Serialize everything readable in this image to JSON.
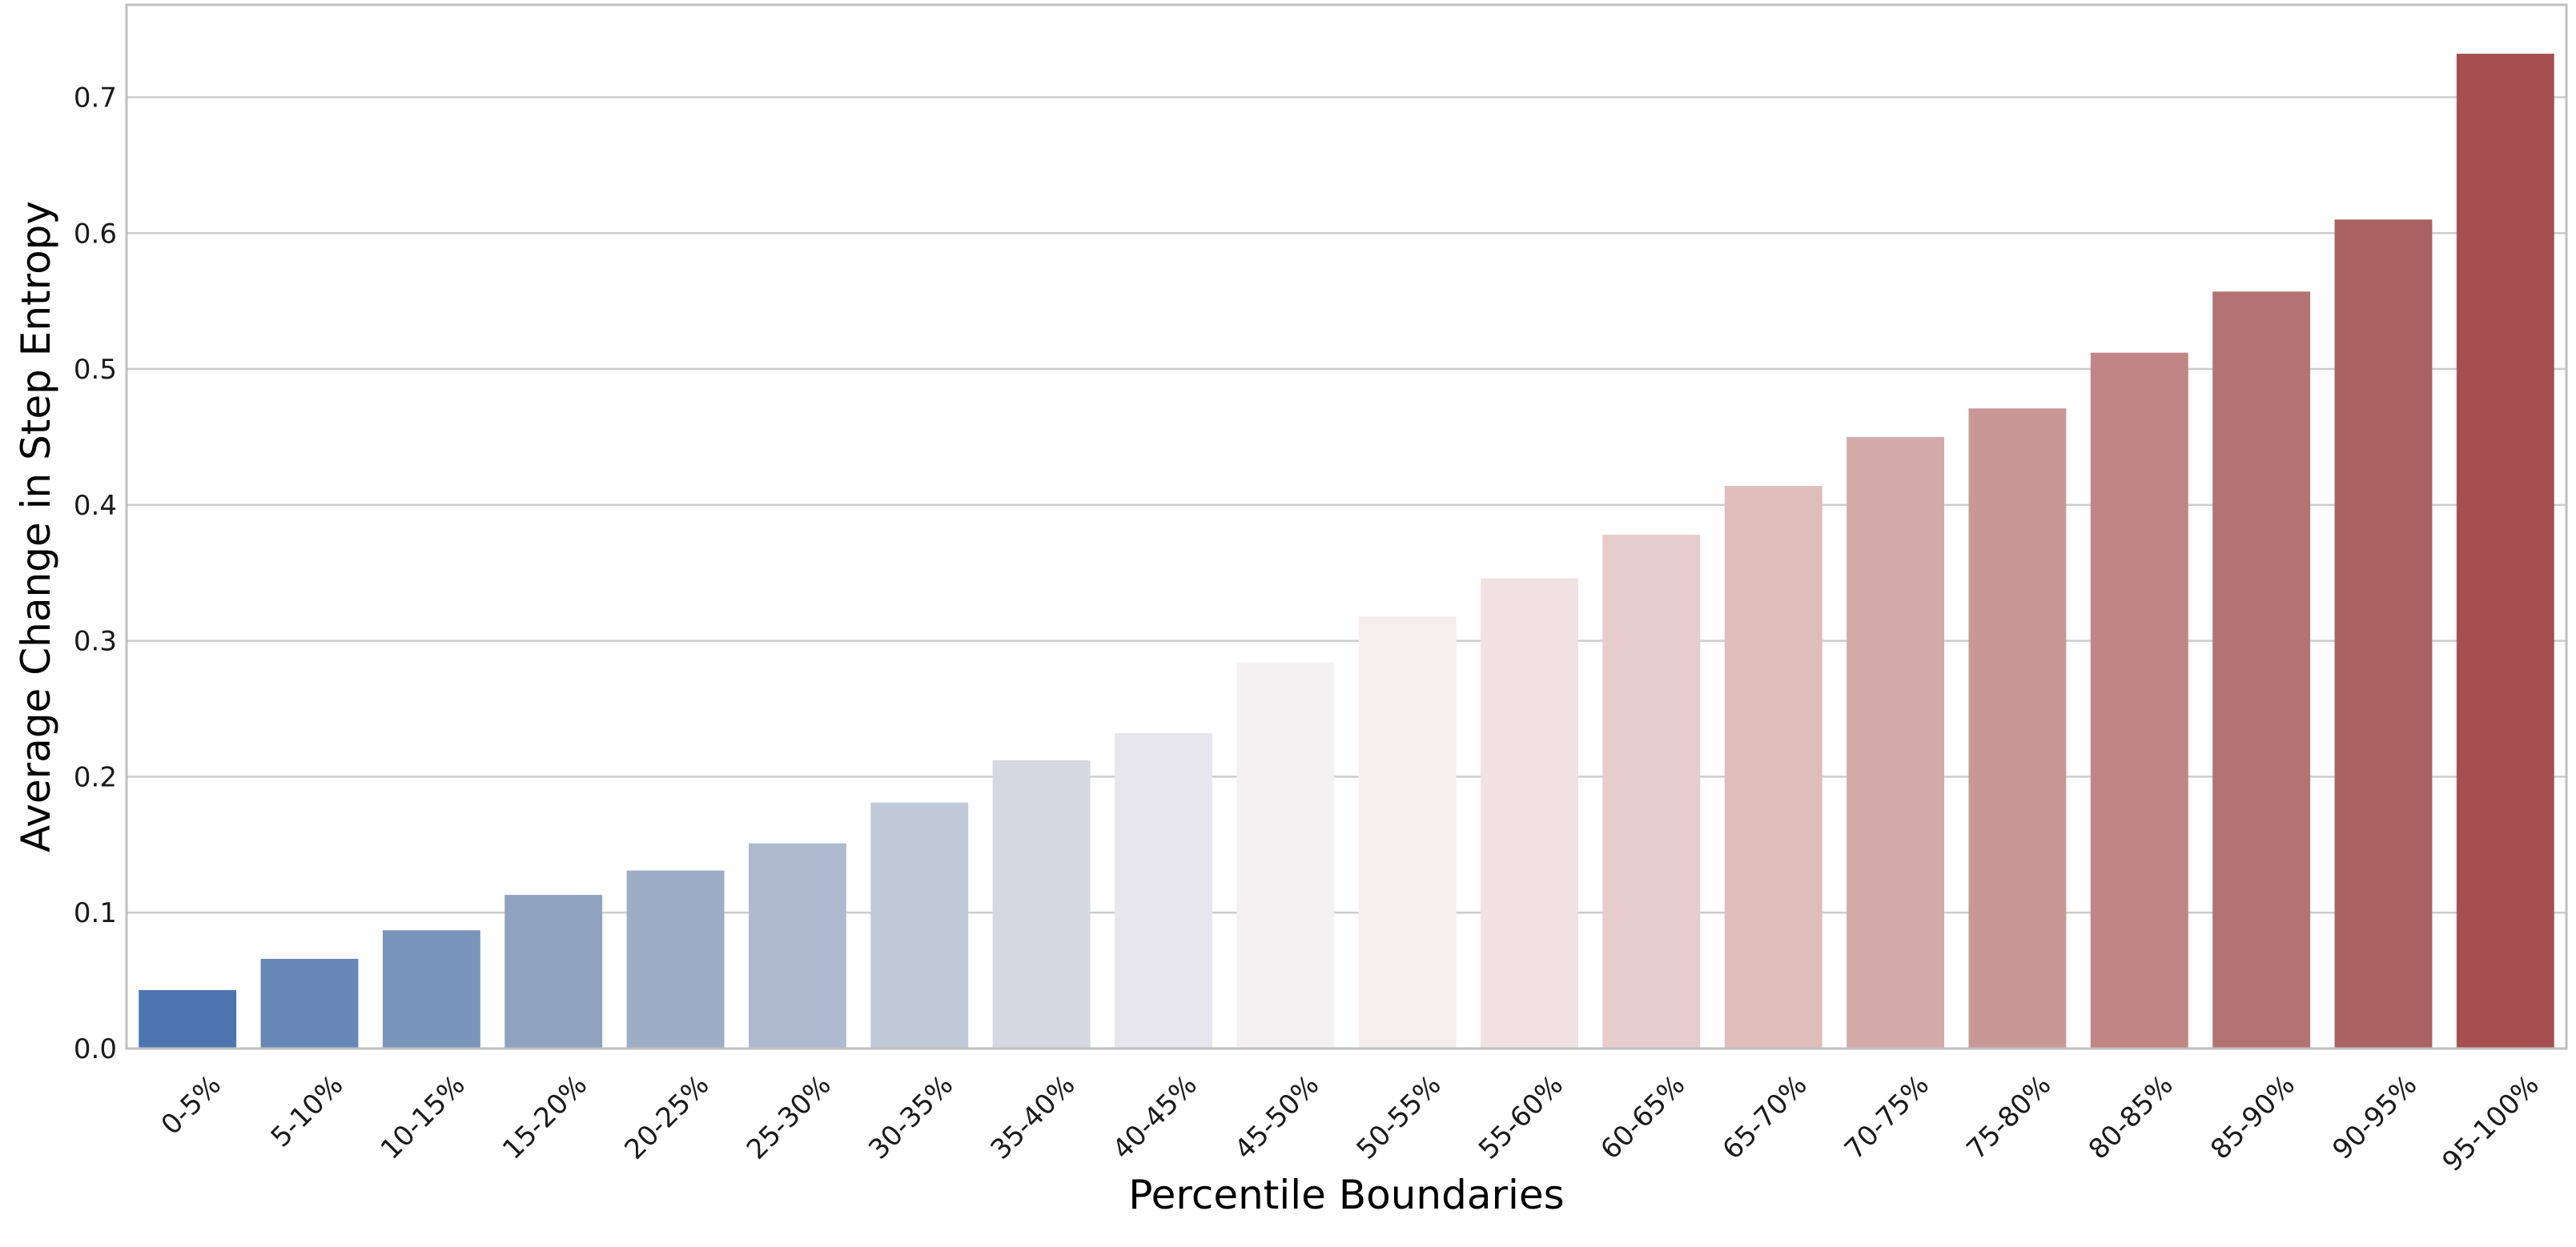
{
  "chart_data": {
    "type": "bar",
    "categories": [
      "0-5%",
      "5-10%",
      "10-15%",
      "15-20%",
      "20-25%",
      "25-30%",
      "30-35%",
      "35-40%",
      "40-45%",
      "45-50%",
      "50-55%",
      "55-60%",
      "60-65%",
      "65-70%",
      "70-75%",
      "75-80%",
      "80-85%",
      "85-90%",
      "90-95%",
      "95-100%"
    ],
    "values": [
      0.043,
      0.066,
      0.087,
      0.113,
      0.131,
      0.151,
      0.181,
      0.212,
      0.232,
      0.284,
      0.318,
      0.346,
      0.378,
      0.414,
      0.45,
      0.471,
      0.512,
      0.557,
      0.61,
      0.732
    ],
    "colors": [
      "#4d76b0",
      "#6787b6",
      "#7a95bb",
      "#8ea2c0",
      "#9dadc5",
      "#aebad0",
      "#c0c9d8",
      "#d3d8e2",
      "#e6e6ec",
      "#f4f1f2",
      "#f6eded",
      "#f1e2e2",
      "#e6cccc",
      "#dfbdbb",
      "#d4aaa9",
      "#c99896",
      "#c08584",
      "#b37372",
      "#ab6262",
      "#a54f51"
    ],
    "title": "",
    "xlabel": "Percentile Boundaries",
    "ylabel": "Average Change in Step Entropy",
    "ylim": [
      0,
      0.768
    ],
    "yticks": [
      0.0,
      0.1,
      0.2,
      0.3,
      0.4,
      0.5,
      0.6,
      0.7
    ],
    "ytick_labels": [
      "0.0",
      "0.1",
      "0.2",
      "0.3",
      "0.4",
      "0.5",
      "0.6",
      "0.7"
    ],
    "grid": "horizontal",
    "legend": "none"
  }
}
